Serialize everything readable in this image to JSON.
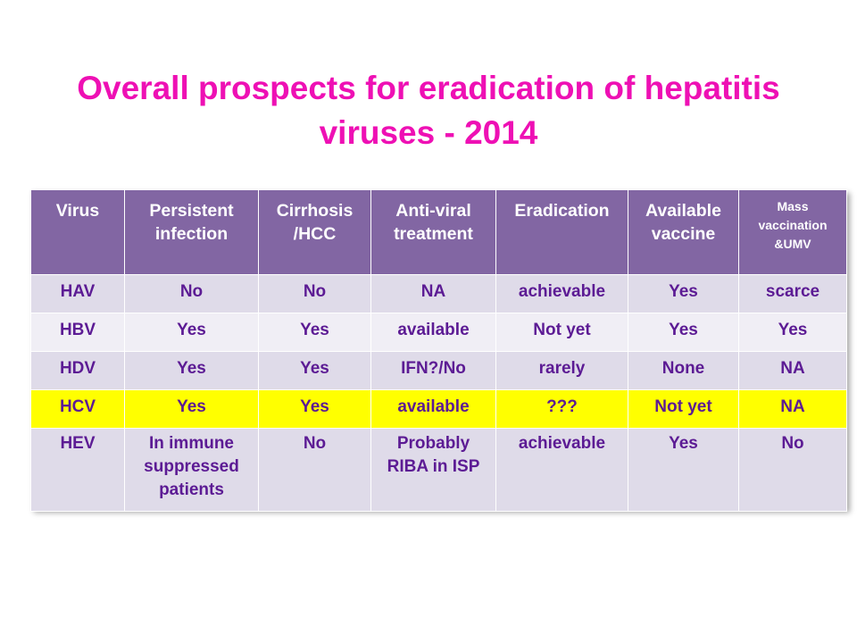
{
  "slide": {
    "title_line1": "Overall prospects for eradication of hepatitis",
    "title_line2": "viruses - 2014"
  },
  "table": {
    "headers": [
      "Virus",
      "Persistent infection",
      "Cirrhosis /HCC",
      "Anti-viral treatment",
      "Eradication",
      "Available vaccine",
      "Mass vaccination &UMV"
    ],
    "rows": [
      [
        "HAV",
        "No",
        "No",
        "NA",
        "achievable",
        "Yes",
        "scarce"
      ],
      [
        "HBV",
        "Yes",
        "Yes",
        "available",
        "Not yet",
        "Yes",
        "Yes"
      ],
      [
        "HDV",
        "Yes",
        "Yes",
        "IFN?/No",
        "rarely",
        "None",
        "NA"
      ],
      [
        "HCV",
        "Yes",
        "Yes",
        "available",
        "???",
        "Not yet",
        "NA"
      ],
      [
        "HEV",
        "In immune suppressed patients",
        "No",
        "Probably RIBA in ISP",
        "achievable",
        "Yes",
        "No"
      ]
    ]
  },
  "colors": {
    "title": "#ee10b4",
    "header_bg": "#8266a3",
    "row_light": "#dfdbe9",
    "row_lighter": "#f0eef5",
    "highlight": "#ffff00",
    "cell_text": "#5c1b94"
  }
}
